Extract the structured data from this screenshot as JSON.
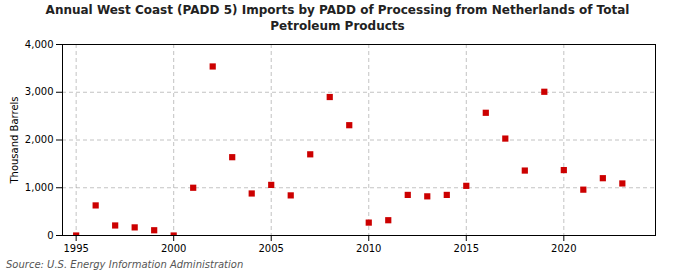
{
  "chart_data": {
    "type": "scatter",
    "title": "Annual West Coast (PADD 5) Imports by PADD of Processing from Netherlands of Total\nPetroleum Products",
    "ylabel": "Thousand Barrels",
    "source": "Source: U.S. Energy Information Administration",
    "x": [
      1995,
      1996,
      1997,
      1998,
      1999,
      2000,
      2001,
      2002,
      2003,
      2004,
      2005,
      2006,
      2007,
      2008,
      2009,
      2010,
      2011,
      2012,
      2013,
      2014,
      2015,
      2016,
      2017,
      2018,
      2019,
      2020,
      2021,
      2022,
      2023
    ],
    "values": [
      0,
      630,
      210,
      170,
      110,
      0,
      1000,
      3540,
      1640,
      880,
      1060,
      840,
      1700,
      2900,
      2310,
      270,
      320,
      850,
      820,
      850,
      1040,
      2570,
      2030,
      1360,
      3010,
      1370,
      960,
      1200,
      1090
    ],
    "color": "#cc0000",
    "marker": "square",
    "xlim": [
      1994.3,
      2024.7
    ],
    "xticks": [
      1995,
      2000,
      2005,
      2010,
      2015,
      2020
    ],
    "ylim": [
      0,
      4000
    ],
    "yticks": [
      0,
      {
        "value": 1000,
        "label": "1,000"
      },
      {
        "value": 2000,
        "label": "2,000"
      },
      {
        "value": 3000,
        "label": "3,000"
      },
      {
        "value": 4000,
        "label": "4,000"
      }
    ],
    "grid": true
  }
}
